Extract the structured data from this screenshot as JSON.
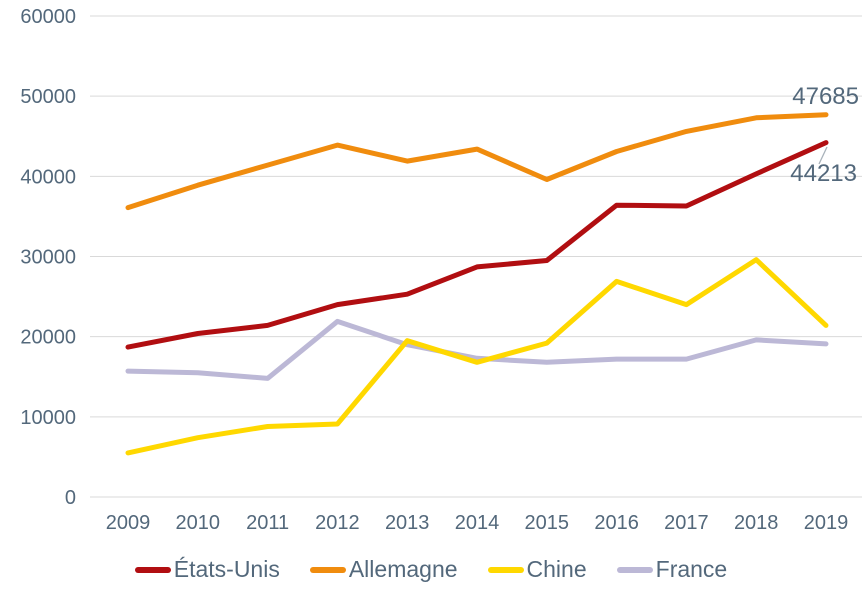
{
  "chart_data": {
    "type": "line",
    "x": [
      2009,
      2010,
      2011,
      2012,
      2013,
      2014,
      2015,
      2016,
      2017,
      2018,
      2019
    ],
    "series": [
      {
        "name": "États-Unis",
        "color": "#b10e11",
        "values": [
          18700,
          20400,
          21400,
          24000,
          25300,
          28700,
          29500,
          36400,
          36300,
          40300,
          44213
        ]
      },
      {
        "name": "Allemagne",
        "color": "#f08c0e",
        "values": [
          36100,
          38900,
          41400,
          43900,
          41900,
          43400,
          39600,
          43100,
          45600,
          47300,
          47685
        ]
      },
      {
        "name": "Chine",
        "color": "#ffd800",
        "values": [
          5500,
          7400,
          8800,
          9100,
          19500,
          16800,
          19200,
          26900,
          24000,
          29600,
          21400
        ]
      },
      {
        "name": "France",
        "color": "#bcb8d6",
        "values": [
          15700,
          15500,
          14800,
          21900,
          19000,
          17300,
          16800,
          17200,
          17200,
          19600,
          19100
        ]
      }
    ],
    "title": "",
    "xlabel": "",
    "ylabel": "",
    "ylim": [
      0,
      60000
    ],
    "yticks": [
      0,
      10000,
      20000,
      30000,
      40000,
      50000,
      60000
    ],
    "ytick_labels": [
      "0",
      "10000",
      "20000",
      "30000",
      "40000",
      "50000",
      "60000"
    ],
    "grid": "horizontal",
    "gridline_color": "#d9d9d9",
    "axis_text_color": "#53687b",
    "legend_position": "bottom",
    "annotations": [
      {
        "series": "Allemagne",
        "x": 2019,
        "text": "47685",
        "position": "above-right"
      },
      {
        "series": "États-Unis",
        "x": 2019,
        "text": "44213",
        "position": "below-right",
        "leader": true
      }
    ]
  }
}
